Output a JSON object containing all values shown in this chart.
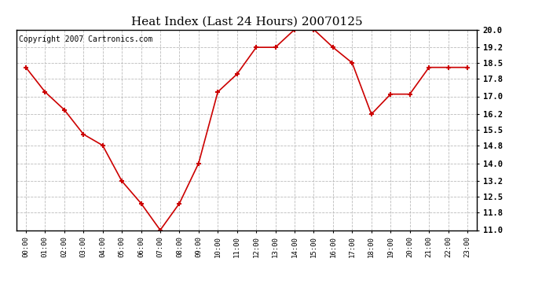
{
  "title": "Heat Index (Last 24 Hours) 20070125",
  "copyright": "Copyright 2007 Cartronics.com",
  "hours": [
    "00:00",
    "01:00",
    "02:00",
    "03:00",
    "04:00",
    "05:00",
    "06:00",
    "07:00",
    "08:00",
    "09:00",
    "10:00",
    "11:00",
    "12:00",
    "13:00",
    "14:00",
    "15:00",
    "16:00",
    "17:00",
    "18:00",
    "19:00",
    "20:00",
    "21:00",
    "22:00",
    "23:00"
  ],
  "values": [
    18.3,
    17.2,
    16.4,
    15.3,
    14.8,
    13.2,
    12.2,
    11.0,
    12.2,
    14.0,
    17.2,
    18.0,
    19.2,
    19.2,
    20.0,
    20.0,
    19.2,
    18.5,
    16.2,
    17.1,
    17.1,
    18.3,
    18.3,
    18.3
  ],
  "ylim": [
    11.0,
    20.0
  ],
  "yticks": [
    11.0,
    11.8,
    12.5,
    13.2,
    14.0,
    14.8,
    15.5,
    16.2,
    17.0,
    17.8,
    18.5,
    19.2,
    20.0
  ],
  "line_color": "#cc0000",
  "marker_color": "#cc0000",
  "plot_bg_color": "#ffffff",
  "fig_bg_color": "#ffffff",
  "grid_color": "#bbbbbb",
  "title_fontsize": 11,
  "copyright_fontsize": 7
}
